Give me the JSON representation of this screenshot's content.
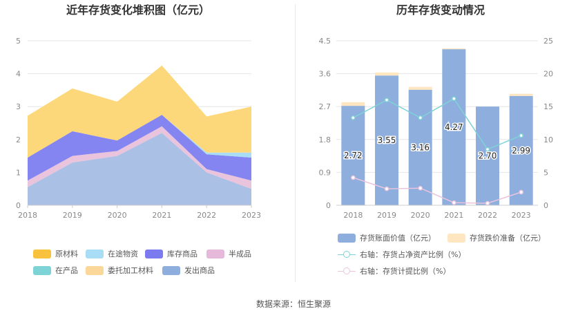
{
  "source_text": "数据来源：恒生聚源",
  "chart_data": [
    {
      "type": "area",
      "stacked": true,
      "title": "近年存货变化堆积图（亿元）",
      "categories": [
        "2018",
        "2019",
        "2020",
        "2021",
        "2022",
        "2023"
      ],
      "ylim": [
        0,
        5
      ],
      "yticks": [
        "0",
        "1",
        "2",
        "3",
        "4",
        "5"
      ],
      "grid": true,
      "legend_position": "bottom",
      "series": [
        {
          "name": "发出商品",
          "color": "#aac0e4",
          "values": [
            0.55,
            1.3,
            1.5,
            2.2,
            1.0,
            0.5
          ]
        },
        {
          "name": "委托加工材料",
          "color": "#fbdca2",
          "values": [
            0.0,
            0.0,
            0.0,
            0.0,
            0.0,
            0.0
          ]
        },
        {
          "name": "在产品",
          "color": "#7ed3d6",
          "values": [
            0.0,
            0.0,
            0.0,
            0.0,
            0.0,
            0.0
          ]
        },
        {
          "name": "半成品",
          "color": "#eac4dd",
          "values": [
            0.2,
            0.2,
            0.15,
            0.2,
            0.1,
            0.25
          ]
        },
        {
          "name": "库存商品",
          "color": "#8585f1",
          "values": [
            0.7,
            0.75,
            0.32,
            0.35,
            0.45,
            0.7
          ]
        },
        {
          "name": "在途物资",
          "color": "#a9dcf5",
          "values": [
            0.0,
            0.0,
            0.0,
            0.0,
            0.05,
            0.15
          ]
        },
        {
          "name": "原材料",
          "color": "#fdd87a",
          "values": [
            1.27,
            1.3,
            1.18,
            1.5,
            1.1,
            1.4
          ]
        }
      ],
      "legend_order": [
        "原材料",
        "在途物资",
        "库存商品",
        "半成品",
        "在产品",
        "委托加工材料",
        "发出商品"
      ]
    },
    {
      "type": "bar",
      "stacked": true,
      "title": "历年存货变动情况",
      "categories": [
        "2018",
        "2019",
        "2020",
        "2021",
        "2022",
        "2023"
      ],
      "ylim": [
        0,
        4.5
      ],
      "yticks": [
        "0",
        "0.9",
        "1.8",
        "2.7",
        "3.6",
        "4.5"
      ],
      "y2lim": [
        0,
        25
      ],
      "y2ticks": [
        "0",
        "5",
        "10",
        "15",
        "20",
        "25"
      ],
      "grid": true,
      "legend_position": "bottom",
      "series": [
        {
          "name": "存货账面价值（亿元）",
          "kind": "bar",
          "color": "#8eaedd",
          "values": [
            2.72,
            3.55,
            3.16,
            4.27,
            2.7,
            2.99
          ],
          "labels": [
            "2.72",
            "3.55",
            "3.16",
            "4.27",
            "2.70",
            "2.99"
          ]
        },
        {
          "name": "存货跌价准备（亿元）",
          "kind": "bar",
          "color": "#fde6c0",
          "values": [
            0.1,
            0.08,
            0.08,
            0.02,
            0.0,
            0.06
          ]
        },
        {
          "name": "右轴：存货占净资产比例（%）",
          "kind": "line",
          "axis": "right",
          "color": "#7ed3d6",
          "values": [
            13.3,
            16.0,
            13.3,
            16.2,
            8.5,
            10.6
          ]
        },
        {
          "name": "右轴：存货计提比例（%）",
          "kind": "line",
          "axis": "right",
          "color": "#eac4dd",
          "values": [
            4.2,
            2.5,
            2.6,
            0.4,
            0.3,
            2.0
          ]
        }
      ]
    }
  ]
}
